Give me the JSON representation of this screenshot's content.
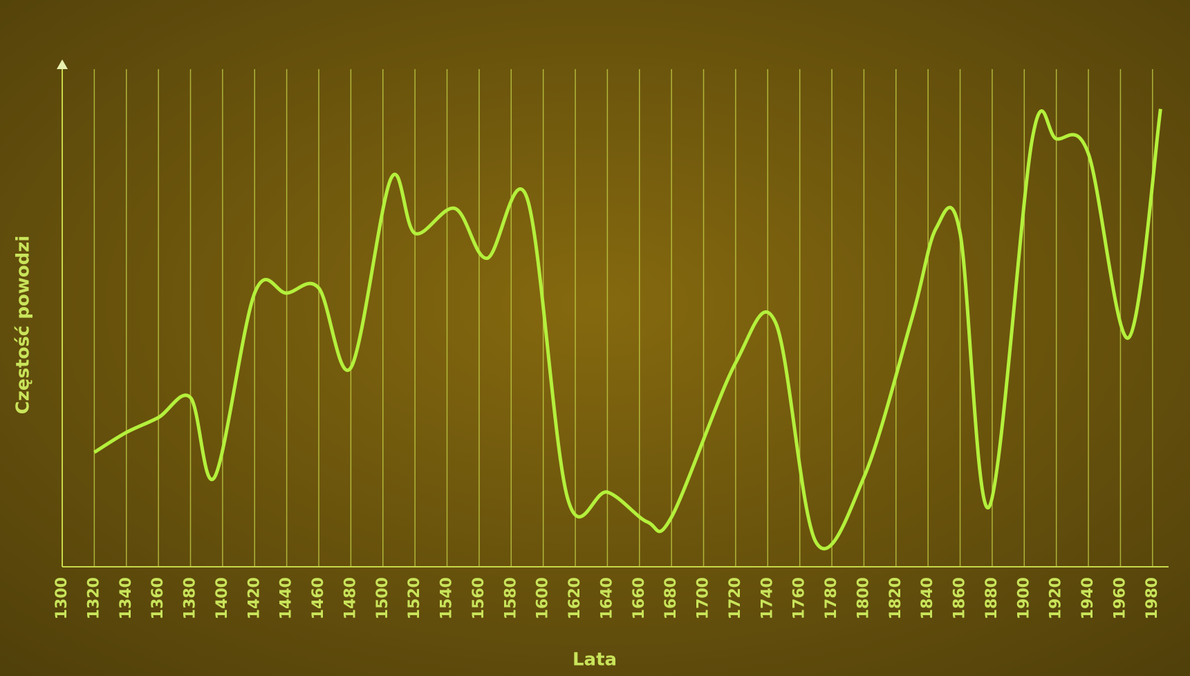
{
  "chart_data": {
    "type": "line",
    "x_label": "Lata",
    "y_label": "Częstość powodzi",
    "x": [
      1320,
      1340,
      1360,
      1380,
      1395,
      1420,
      1440,
      1460,
      1480,
      1505,
      1520,
      1545,
      1565,
      1590,
      1615,
      1640,
      1665,
      1680,
      1720,
      1745,
      1770,
      1800,
      1830,
      1845,
      1860,
      1878,
      1905,
      1920,
      1940,
      1965,
      1985
    ],
    "values": [
      23,
      27,
      30,
      34,
      18,
      55,
      55,
      56,
      40,
      78,
      67,
      72,
      62,
      74,
      14,
      15,
      9,
      10,
      41,
      49,
      5,
      18,
      50,
      68,
      67,
      12,
      86,
      86,
      83,
      46,
      92
    ],
    "color": "#b4f03c",
    "xlim": [
      1300,
      1990
    ],
    "ylim": [
      0,
      100
    ],
    "xticks": [
      1300,
      1320,
      1340,
      1360,
      1380,
      1400,
      1420,
      1440,
      1460,
      1480,
      1500,
      1520,
      1540,
      1560,
      1580,
      1600,
      1620,
      1640,
      1660,
      1680,
      1700,
      1720,
      1740,
      1760,
      1780,
      1800,
      1820,
      1840,
      1860,
      1880,
      1900,
      1920,
      1940,
      1960,
      1980
    ],
    "grid": true
  }
}
